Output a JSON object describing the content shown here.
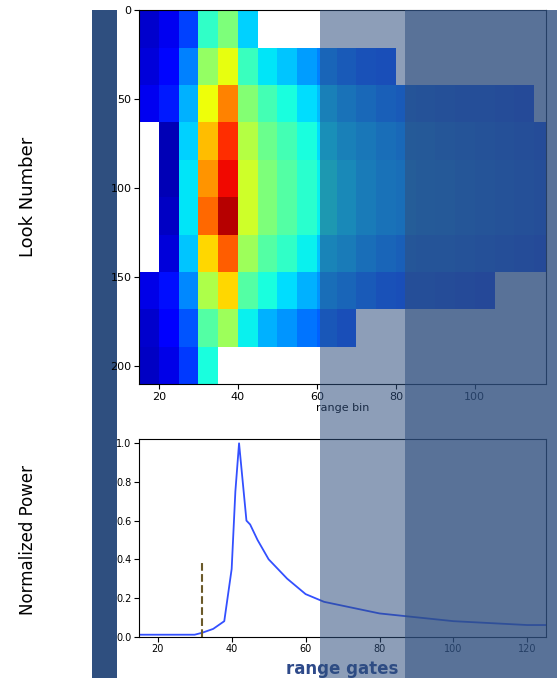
{
  "chart_data": [
    {
      "type": "heatmap",
      "xlabel": "range bin",
      "ylabel": "Look Number",
      "x_edges": [
        15,
        20,
        25,
        30,
        35,
        40,
        45,
        50,
        55,
        60,
        65,
        70,
        75,
        80,
        85,
        90,
        95,
        100,
        105,
        110,
        115,
        120
      ],
      "y_edges": [
        0,
        21,
        42,
        63,
        84,
        105,
        126,
        147,
        168,
        189,
        210
      ],
      "cells": [
        [
          0.07,
          0.1,
          0.19,
          0.41,
          0.5,
          0.33,
          null,
          null,
          null,
          null,
          null,
          null,
          null,
          null,
          null,
          null,
          null,
          null,
          null,
          null,
          null
        ],
        [
          0.08,
          0.13,
          0.25,
          0.53,
          0.63,
          0.42,
          0.35,
          0.32,
          0.28,
          0.25,
          0.23,
          0.21,
          0.2,
          null,
          null,
          null,
          null,
          null,
          null,
          null,
          null
        ],
        [
          0.1,
          0.15,
          0.3,
          0.64,
          0.77,
          0.51,
          0.43,
          0.38,
          0.34,
          0.31,
          0.28,
          0.26,
          0.24,
          0.23,
          0.22,
          0.21,
          0.2,
          0.2,
          0.19,
          0.18,
          null
        ],
        [
          null,
          0.05,
          0.33,
          0.71,
          0.86,
          0.57,
          0.48,
          0.43,
          0.38,
          0.34,
          0.31,
          0.29,
          0.27,
          0.26,
          0.25,
          0.24,
          0.23,
          0.22,
          0.21,
          0.2,
          0.19
        ],
        [
          null,
          0.05,
          0.35,
          0.75,
          0.9,
          0.6,
          0.5,
          0.45,
          0.4,
          0.36,
          0.33,
          0.3,
          0.28,
          0.27,
          0.26,
          0.25,
          0.24,
          0.23,
          0.22,
          0.21,
          0.2
        ],
        [
          null,
          0.06,
          0.35,
          0.8,
          0.95,
          0.6,
          0.5,
          0.45,
          0.4,
          0.36,
          0.33,
          0.3,
          0.28,
          0.27,
          0.26,
          0.25,
          0.24,
          0.23,
          0.22,
          0.21,
          0.2
        ],
        [
          null,
          0.08,
          0.32,
          0.68,
          0.81,
          0.54,
          0.45,
          0.41,
          0.36,
          0.32,
          0.3,
          0.27,
          0.25,
          0.24,
          0.23,
          0.23,
          0.22,
          0.21,
          0.2,
          0.19,
          0.18
        ],
        [
          0.09,
          0.14,
          0.26,
          0.56,
          0.68,
          0.45,
          0.38,
          0.34,
          0.3,
          0.27,
          0.25,
          0.23,
          0.21,
          0.2,
          0.2,
          0.19,
          0.18,
          0.17,
          null,
          null,
          null
        ],
        [
          0.07,
          0.11,
          0.21,
          0.45,
          0.54,
          0.36,
          0.3,
          0.27,
          0.24,
          0.22,
          0.2,
          null,
          null,
          null,
          null,
          null,
          null,
          null,
          null,
          null,
          null
        ],
        [
          0.06,
          0.09,
          0.18,
          0.38,
          null,
          null,
          null,
          null,
          null,
          null,
          null,
          null,
          null,
          null,
          null,
          null,
          null,
          null,
          null,
          null,
          null
        ]
      ],
      "zlim": [
        0,
        1
      ],
      "xlim": [
        15,
        118
      ],
      "xticks": [
        20,
        40,
        60,
        80,
        100
      ],
      "ylim": [
        210,
        0
      ],
      "yticks": [
        0,
        50,
        100,
        150,
        200
      ]
    },
    {
      "type": "line",
      "xlabel": "range gates",
      "ylabel": "Normalized Power",
      "x": [
        15,
        20,
        25,
        30,
        32,
        35,
        38,
        40,
        41,
        42,
        43,
        44,
        45,
        47,
        50,
        55,
        60,
        65,
        70,
        75,
        80,
        85,
        90,
        100,
        110,
        120,
        125
      ],
      "values": [
        0.01,
        0.01,
        0.01,
        0.01,
        0.02,
        0.04,
        0.08,
        0.35,
        0.75,
        1.0,
        0.8,
        0.6,
        0.58,
        0.5,
        0.4,
        0.3,
        0.22,
        0.18,
        0.16,
        0.14,
        0.12,
        0.11,
        0.1,
        0.08,
        0.07,
        0.06,
        0.06
      ],
      "color": "#3350ff",
      "vline": {
        "x": 32,
        "y": [
          0,
          0.38
        ],
        "line_style": "dashed",
        "color": "#6b5a2a"
      },
      "xlim": [
        15,
        125
      ],
      "xticks": [
        20,
        40,
        60,
        80,
        100,
        120
      ],
      "ylim": [
        0,
        1.02
      ],
      "yticks": [
        0.0,
        0.2,
        0.4,
        0.6,
        0.8,
        1.0
      ]
    }
  ]
}
